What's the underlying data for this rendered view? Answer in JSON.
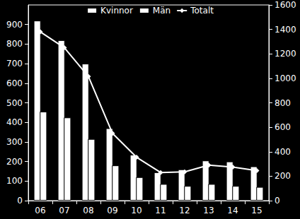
{
  "chart_data": {
    "type": "bar",
    "categories": [
      "06",
      "07",
      "08",
      "09",
      "10",
      "11",
      "12",
      "13",
      "14",
      "15"
    ],
    "series": [
      {
        "name": "Kvinnor",
        "type": "bar",
        "color": "#ffffff",
        "values": [
          920,
          820,
          700,
          370,
          235,
          145,
          160,
          205,
          200,
          175
        ]
      },
      {
        "name": "Män",
        "type": "bar",
        "color": "#ffffff",
        "values": [
          455,
          425,
          315,
          180,
          120,
          85,
          75,
          85,
          75,
          70
        ]
      },
      {
        "name": "Totalt",
        "type": "line",
        "axis": "y2",
        "color": "#ffffff",
        "marker": "diamond",
        "values": [
          1380,
          1250,
          1015,
          550,
          355,
          230,
          235,
          290,
          275,
          245
        ]
      }
    ],
    "ylim": [
      0,
      1000
    ],
    "yticks": [
      0,
      100,
      200,
      300,
      400,
      500,
      600,
      700,
      800,
      900
    ],
    "y2lim": [
      0,
      1600
    ],
    "y2ticks": [
      0,
      200,
      400,
      600,
      800,
      1000,
      1200,
      1400,
      1600
    ],
    "grid": false,
    "legend": "top"
  }
}
